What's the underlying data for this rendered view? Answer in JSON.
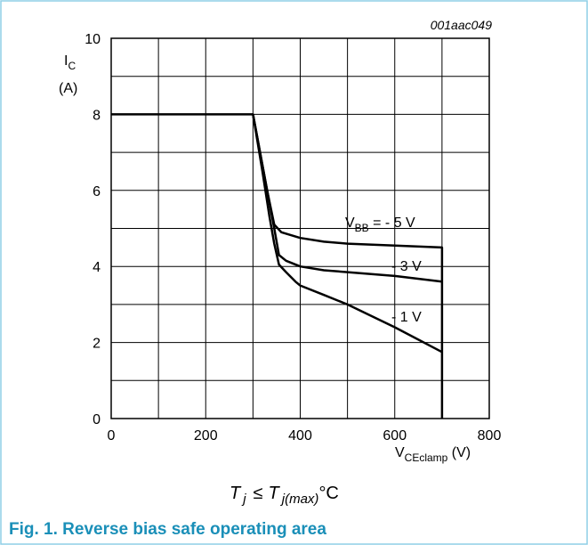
{
  "figure": {
    "code": "001aac049",
    "caption": "Fig. 1. Reverse bias safe operating area",
    "condition": {
      "t": "T",
      "j": "j",
      "le": "≤",
      "jmax": "j(max)",
      "unit": "°C"
    }
  },
  "colors": {
    "border": "#8fcfe6",
    "caption": "#1a8fb8",
    "grid": "#000000",
    "curve": "#000000"
  },
  "chart_data": {
    "type": "line",
    "title": "",
    "xlabel": {
      "main": "V",
      "sub": "CEclamp",
      "unit": " (V)"
    },
    "ylabel": {
      "main": "I",
      "sub": "C",
      "unit": "(A)"
    },
    "xlim": [
      0,
      800
    ],
    "ylim": [
      0,
      10
    ],
    "xticks": [
      0,
      200,
      400,
      600,
      800
    ],
    "yticks": [
      0,
      2,
      4,
      6,
      8,
      10
    ],
    "grid": true,
    "series": [
      {
        "name": "V_BB = -5 V",
        "label": {
          "pre": "V",
          "sub": "BB",
          "post": " = - 5 V"
        },
        "x": [
          0,
          300,
          330,
          345,
          360,
          400,
          450,
          500,
          600,
          700,
          700
        ],
        "y": [
          8,
          8,
          6,
          5.1,
          4.9,
          4.75,
          4.65,
          4.6,
          4.55,
          4.5,
          0
        ]
      },
      {
        "name": "-3 V",
        "label": {
          "pre": "",
          "sub": "",
          "post": "- 3 V"
        },
        "x": [
          300,
          330,
          345,
          355,
          370,
          400,
          450,
          500,
          600,
          700
        ],
        "y": [
          8,
          6,
          5.0,
          4.3,
          4.15,
          4.0,
          3.9,
          3.85,
          3.75,
          3.6
        ]
      },
      {
        "name": "-1 V",
        "label": {
          "pre": "",
          "sub": "",
          "post": "- 1 V"
        },
        "x": [
          300,
          320,
          335,
          345,
          355,
          370,
          390,
          400,
          450,
          500,
          600,
          700
        ],
        "y": [
          8,
          6.5,
          5.3,
          4.6,
          4.05,
          3.85,
          3.6,
          3.5,
          3.25,
          3.0,
          2.4,
          1.75
        ]
      }
    ]
  }
}
